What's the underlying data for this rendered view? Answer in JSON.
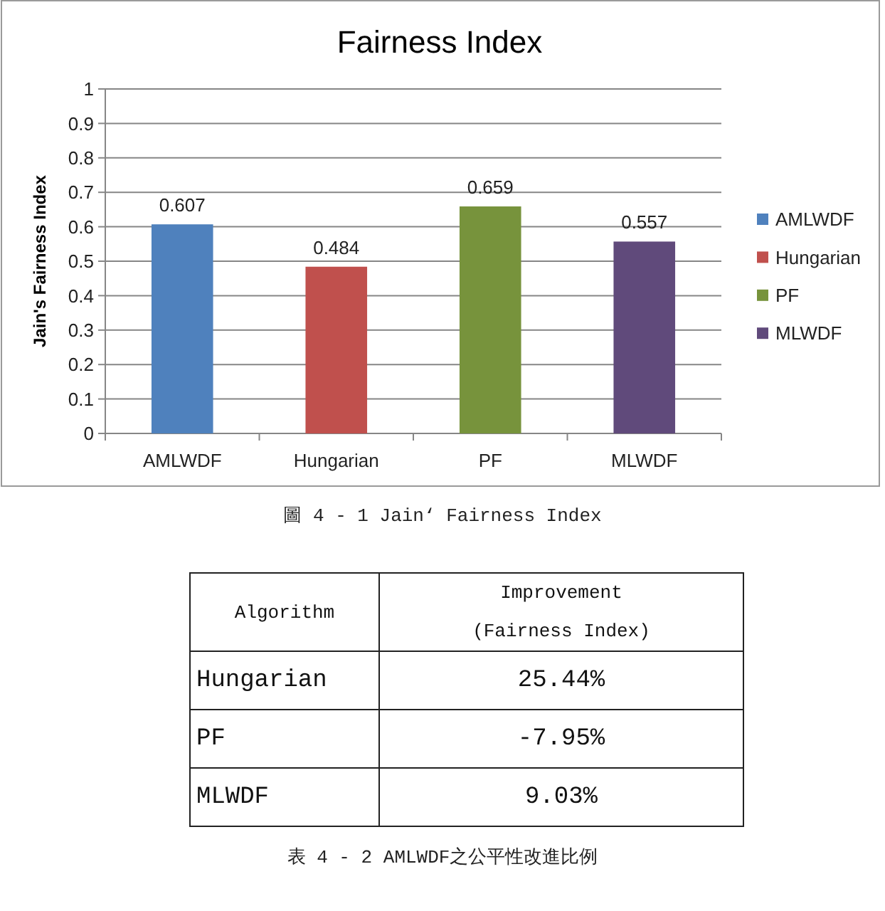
{
  "chart_data": [
    {
      "type": "bar",
      "title": "Fairness Index",
      "ylabel": "Jain's Fairness Index",
      "categories": [
        "AMLWDF",
        "Hungarian",
        "PF",
        "MLWDF"
      ],
      "stacked": true,
      "series": [
        {
          "name": "AMLWDF",
          "color": "#4f81bd",
          "values": [
            0.607,
            null,
            null,
            null
          ]
        },
        {
          "name": "Hungarian",
          "color": "#c0504d",
          "values": [
            null,
            0.484,
            null,
            null
          ]
        },
        {
          "name": "PF",
          "color": "#77933c",
          "values": [
            null,
            null,
            0.659,
            null
          ]
        },
        {
          "name": "MLWDF",
          "color": "#604a7b",
          "values": [
            null,
            null,
            null,
            0.557
          ]
        }
      ],
      "ylim": [
        0,
        1
      ],
      "yticks": [
        0,
        0.1,
        0.2,
        0.3,
        0.4,
        0.5,
        0.6,
        0.7,
        0.8,
        0.9,
        1
      ],
      "grid": "y",
      "legend": "right",
      "data_labels": true,
      "annotations": [
        "圖 4 - 1 Jain‘ Fairness Index"
      ]
    },
    {
      "type": "other",
      "categories": [
        "Algorithm",
        "Improvement\n(Fairness Index)"
      ],
      "cell_labels": [
        [
          "Hungarian",
          "25.44%"
        ],
        [
          "PF",
          "-7.95%"
        ],
        [
          "MLWDF",
          "9.03%"
        ]
      ],
      "annotations": [
        "表 4 - 2 AMLWDF之公平性改進比例"
      ]
    }
  ]
}
